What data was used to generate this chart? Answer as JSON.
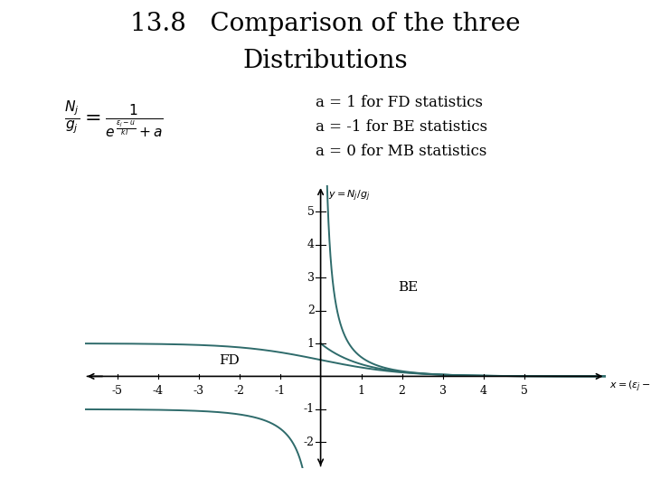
{
  "title_line1": "13.8   Comparison of the three",
  "title_line2": "Distributions",
  "annotation_fd": "a = 1 for FD statistics",
  "annotation_be": "a = -1 for BE statistics",
  "annotation_mb": "a = 0 for MB statistics",
  "curve_color": "#2E6B6B",
  "bg_color": "#ffffff",
  "xlim": [
    -5.8,
    7.0
  ],
  "ylim": [
    -2.8,
    5.8
  ],
  "xticks": [
    -5,
    -4,
    -3,
    -2,
    -1,
    1,
    2,
    3,
    4,
    5
  ],
  "yticks": [
    -2,
    -1,
    1,
    2,
    3,
    4,
    5
  ],
  "label_fd": "FD",
  "label_be": "BE",
  "title_fontsize": 20,
  "annotation_fontsize": 12,
  "tick_fontsize": 9,
  "curve_linewidth": 1.4
}
